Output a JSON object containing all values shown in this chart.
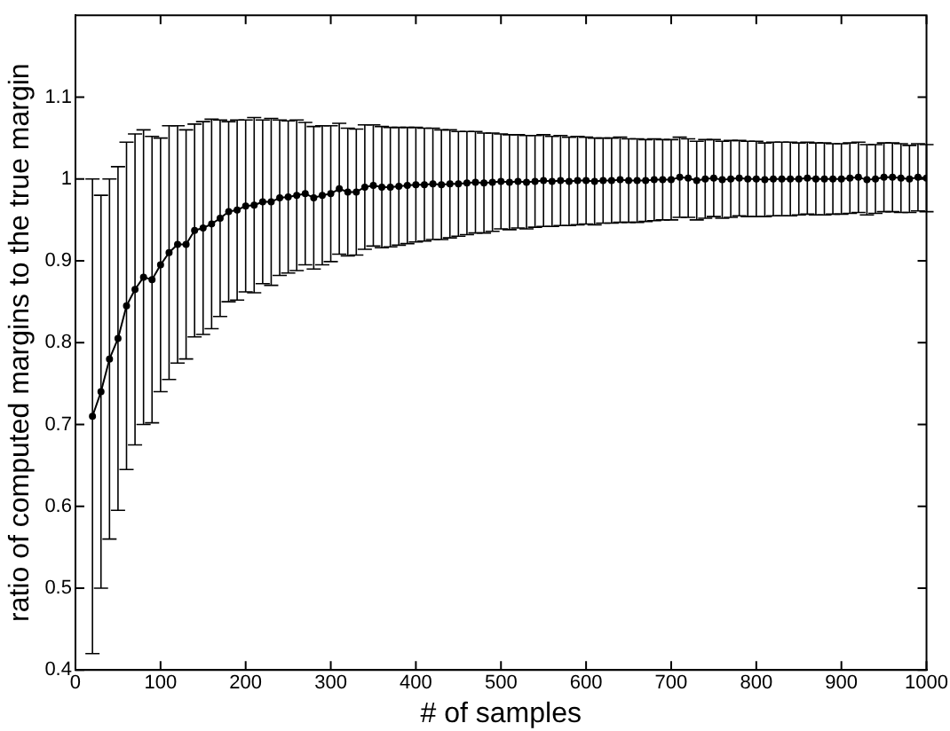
{
  "chart_data": {
    "type": "line",
    "xlabel": "# of samples",
    "ylabel": "ratio of computed margins to the true margin",
    "x": [
      20,
      30,
      40,
      50,
      60,
      70,
      80,
      90,
      100,
      110,
      120,
      130,
      140,
      150,
      160,
      170,
      180,
      190,
      200,
      210,
      220,
      230,
      240,
      250,
      260,
      270,
      280,
      290,
      300,
      310,
      320,
      330,
      340,
      350,
      360,
      370,
      380,
      390,
      400,
      410,
      420,
      430,
      440,
      450,
      460,
      470,
      480,
      490,
      500,
      510,
      520,
      530,
      540,
      550,
      560,
      570,
      580,
      590,
      600,
      610,
      620,
      630,
      640,
      650,
      660,
      670,
      680,
      690,
      700,
      710,
      720,
      730,
      740,
      750,
      760,
      770,
      780,
      790,
      800,
      810,
      820,
      830,
      840,
      850,
      860,
      870,
      880,
      890,
      900,
      910,
      920,
      930,
      940,
      950,
      960,
      970,
      980,
      990,
      1000
    ],
    "series": [
      {
        "color": "#000000",
        "values": [
          0.71,
          0.74,
          0.78,
          0.805,
          0.845,
          0.865,
          0.88,
          0.877,
          0.895,
          0.91,
          0.92,
          0.92,
          0.937,
          0.94,
          0.945,
          0.952,
          0.96,
          0.962,
          0.967,
          0.968,
          0.972,
          0.972,
          0.977,
          0.978,
          0.98,
          0.982,
          0.977,
          0.98,
          0.982,
          0.988,
          0.984,
          0.984,
          0.99,
          0.992,
          0.99,
          0.99,
          0.991,
          0.992,
          0.993,
          0.993,
          0.994,
          0.993,
          0.994,
          0.994,
          0.995,
          0.996,
          0.995,
          0.996,
          0.997,
          0.996,
          0.997,
          0.996,
          0.997,
          0.998,
          0.997,
          0.998,
          0.997,
          0.998,
          0.998,
          0.997,
          0.998,
          0.998,
          0.999,
          0.998,
          0.998,
          0.998,
          0.999,
          0.999,
          0.999,
          1.002,
          1.001,
          0.998,
          1.0,
          1.001,
          0.999,
          1.0,
          1.001,
          1.0,
          1.0,
          0.999,
          1.0,
          1.0,
          1.0,
          1.0,
          1.001,
          1.0,
          1.0,
          1.0,
          1.0,
          1.001,
          1.002,
          0.999,
          1.0,
          1.002,
          1.002,
          1.001,
          1.0,
          1.002,
          1.001
        ],
        "errors": [
          0.29,
          0.24,
          0.22,
          0.21,
          0.2,
          0.19,
          0.18,
          0.175,
          0.155,
          0.155,
          0.145,
          0.14,
          0.13,
          0.13,
          0.128,
          0.12,
          0.11,
          0.11,
          0.105,
          0.107,
          0.1,
          0.102,
          0.095,
          0.093,
          0.092,
          0.087,
          0.087,
          0.085,
          0.083,
          0.08,
          0.078,
          0.077,
          0.076,
          0.074,
          0.074,
          0.073,
          0.072,
          0.071,
          0.07,
          0.069,
          0.068,
          0.067,
          0.066,
          0.064,
          0.063,
          0.062,
          0.061,
          0.06,
          0.058,
          0.058,
          0.057,
          0.057,
          0.056,
          0.056,
          0.055,
          0.055,
          0.054,
          0.054,
          0.053,
          0.053,
          0.052,
          0.052,
          0.052,
          0.051,
          0.051,
          0.05,
          0.05,
          0.049,
          0.049,
          0.049,
          0.048,
          0.048,
          0.048,
          0.047,
          0.047,
          0.047,
          0.046,
          0.046,
          0.046,
          0.045,
          0.045,
          0.045,
          0.045,
          0.044,
          0.044,
          0.044,
          0.044,
          0.043,
          0.043,
          0.043,
          0.043,
          0.043,
          0.042,
          0.042,
          0.042,
          0.042,
          0.041,
          0.041,
          0.041
        ]
      }
    ],
    "xlim": [
      0,
      1000
    ],
    "xticks": [
      0,
      100,
      200,
      300,
      400,
      500,
      600,
      700,
      800,
      900,
      1000
    ],
    "ylim": [
      0.4,
      1.2
    ],
    "yticks": [
      0.4,
      0.5,
      0.6,
      0.7,
      0.8,
      0.9,
      1,
      1.1
    ],
    "marker": "circle",
    "line_style": "solid",
    "legend": false
  }
}
